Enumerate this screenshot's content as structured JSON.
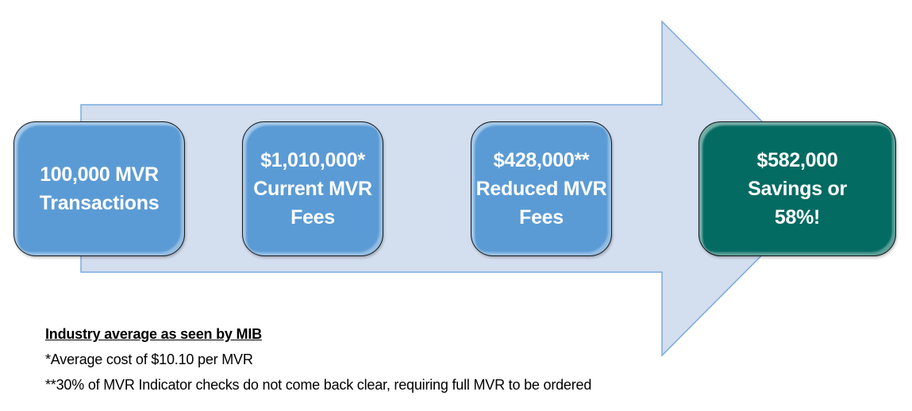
{
  "colors": {
    "arrow_fill": "#d3deef",
    "arrow_stroke": "#7aaadf",
    "step_box": "#5b9bd5",
    "result_box": "#046b62"
  },
  "steps": [
    {
      "text": "100,000 MVR\nTransactions"
    },
    {
      "text": "$1,010,000*\nCurrent MVR\nFees"
    },
    {
      "text": "$428,000**\nReduced MVR\nFees"
    },
    {
      "text": "$582,000\nSavings or\n58%!"
    }
  ],
  "notes": {
    "heading": "Industry average as seen by MIB",
    "line1": "*Average cost of $10.10 per MVR",
    "line2": "**30% of MVR Indicator checks do not come back clear, requiring full MVR to be ordered"
  }
}
